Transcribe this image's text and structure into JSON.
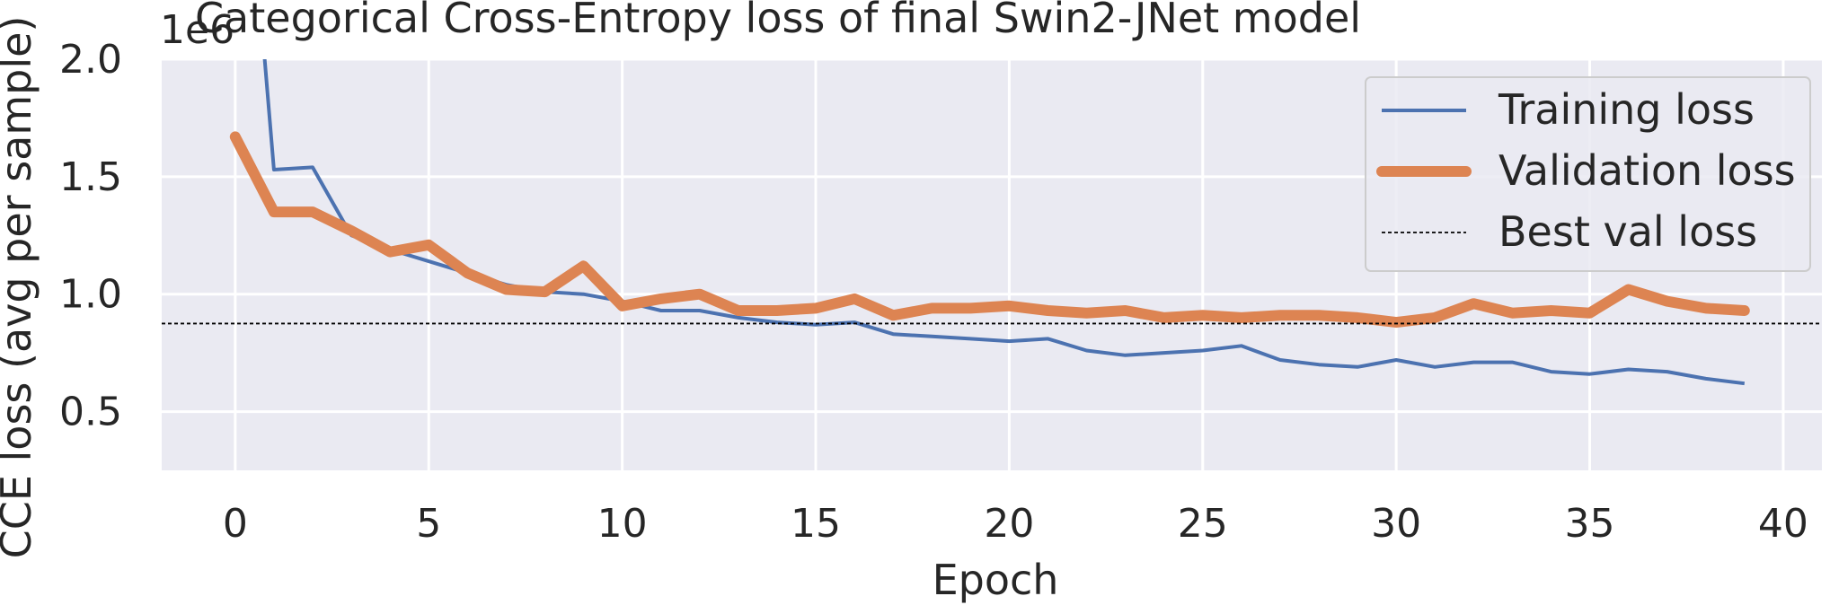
{
  "chart_data": {
    "type": "line",
    "title": "Categorical Cross-Entropy loss of final Swin2-JNet model",
    "xlabel": "Epoch",
    "ylabel": "CCE loss (avg per sample)",
    "y_offset_label": "1e6",
    "xlim": [
      -1.9,
      41
    ],
    "ylim": [
      0.25,
      2.0
    ],
    "x_ticks": [
      0,
      5,
      10,
      15,
      20,
      25,
      30,
      35,
      40
    ],
    "y_ticks": [
      0.5,
      1.0,
      1.5,
      2.0
    ],
    "x_tick_labels": [
      "0",
      "5",
      "10",
      "15",
      "20",
      "25",
      "30",
      "35",
      "40"
    ],
    "y_tick_labels": [
      "0.5",
      "1.0",
      "1.5",
      "2.0"
    ],
    "grid": true,
    "legend_position": "top-right",
    "series": [
      {
        "name": "Training loss",
        "color": "#4c72b0",
        "style": "solid-thin",
        "x": [
          0,
          1,
          2,
          3,
          4,
          5,
          6,
          7,
          8,
          9,
          10,
          11,
          12,
          13,
          14,
          15,
          16,
          17,
          18,
          19,
          20,
          21,
          22,
          23,
          24,
          25,
          26,
          27,
          28,
          29,
          30,
          31,
          32,
          33,
          34,
          35,
          36,
          37,
          38,
          39
        ],
        "values": [
          3.5,
          1.53,
          1.54,
          1.25,
          1.19,
          1.14,
          1.09,
          1.04,
          1.01,
          1.0,
          0.97,
          0.93,
          0.93,
          0.9,
          0.88,
          0.87,
          0.88,
          0.83,
          0.82,
          0.81,
          0.8,
          0.81,
          0.76,
          0.74,
          0.75,
          0.76,
          0.78,
          0.72,
          0.7,
          0.69,
          0.72,
          0.69,
          0.71,
          0.71,
          0.67,
          0.66,
          0.68,
          0.67,
          0.64,
          0.62
        ]
      },
      {
        "name": "Validation loss",
        "color": "#dd8452",
        "style": "solid-thick",
        "x": [
          0,
          1,
          2,
          3,
          4,
          5,
          6,
          7,
          8,
          9,
          10,
          11,
          12,
          13,
          14,
          15,
          16,
          17,
          18,
          19,
          20,
          21,
          22,
          23,
          24,
          25,
          26,
          27,
          28,
          29,
          30,
          31,
          32,
          33,
          34,
          35,
          36,
          37,
          38,
          39
        ],
        "values": [
          1.67,
          1.35,
          1.35,
          1.27,
          1.18,
          1.21,
          1.09,
          1.02,
          1.01,
          1.12,
          0.95,
          0.98,
          1.0,
          0.93,
          0.93,
          0.94,
          0.98,
          0.91,
          0.94,
          0.94,
          0.95,
          0.93,
          0.92,
          0.93,
          0.9,
          0.91,
          0.9,
          0.91,
          0.91,
          0.9,
          0.88,
          0.9,
          0.96,
          0.92,
          0.93,
          0.92,
          1.02,
          0.97,
          0.94,
          0.93
        ]
      },
      {
        "name": "Best val loss",
        "color": "#000000",
        "style": "dashed",
        "values": [
          0.875
        ]
      }
    ]
  }
}
